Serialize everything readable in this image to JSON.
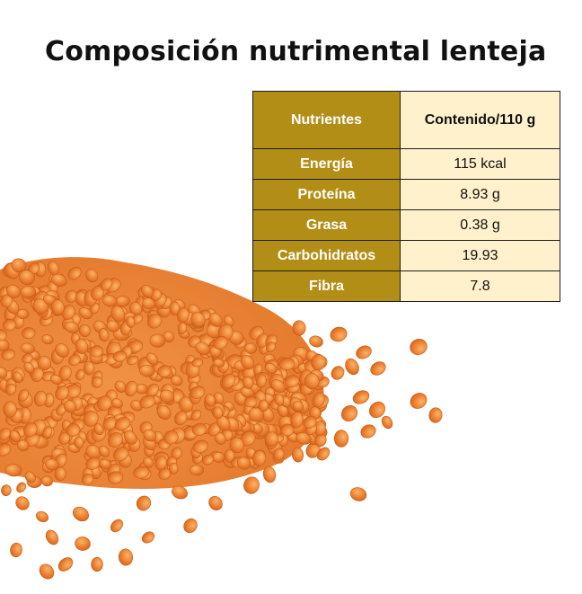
{
  "title": "Composición nutrimental lenteja",
  "table": {
    "headers": [
      "Nutrientes",
      "Contenido/110 g"
    ],
    "rows": [
      [
        "Energía",
        "115 kcal"
      ],
      [
        "Proteína",
        "8.93 g"
      ],
      [
        "Grasa",
        "0.38 g"
      ],
      [
        "Carbohidratos",
        "19.93"
      ],
      [
        "Fibra",
        "7.8"
      ]
    ]
  },
  "colors": {
    "header_gold": "#b38e17",
    "cell_cream": "#fff1cc",
    "lentil_orange": "#ef8a3a"
  }
}
